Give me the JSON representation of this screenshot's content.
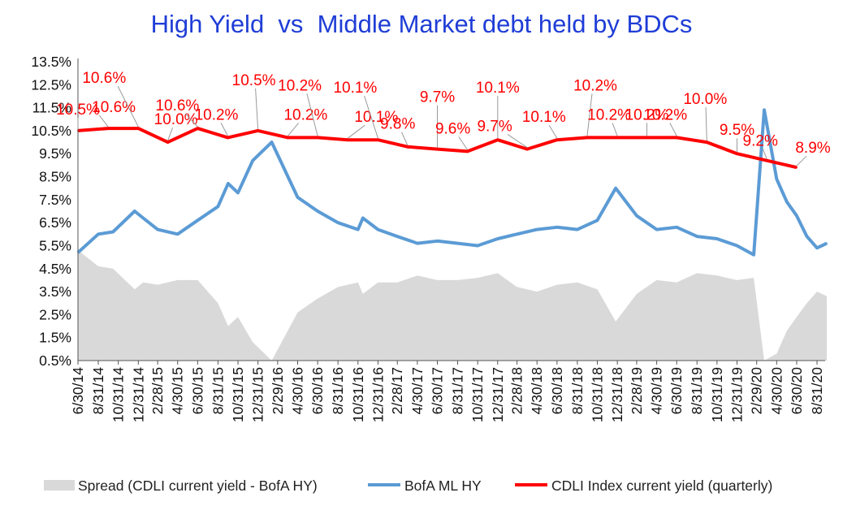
{
  "chart_data": {
    "type": "line",
    "title": "High Yield  vs  Middle Market debt held by BDCs",
    "y_ticks": [
      "0.5%",
      "1.5%",
      "2.5%",
      "3.5%",
      "4.5%",
      "5.5%",
      "6.5%",
      "7.5%",
      "8.5%",
      "9.5%",
      "10.5%",
      "11.5%",
      "12.5%",
      "13.5%"
    ],
    "ylim": [
      0.5,
      13.5
    ],
    "x_ticks": [
      "6/30/14",
      "8/31/14",
      "10/31/14",
      "12/31/14",
      "2/28/15",
      "4/30/15",
      "6/30/15",
      "8/31/15",
      "10/31/15",
      "12/31/15",
      "2/29/16",
      "4/30/16",
      "6/30/16",
      "8/31/16",
      "10/31/16",
      "12/31/16",
      "2/28/17",
      "4/30/17",
      "6/30/17",
      "8/31/17",
      "10/31/17",
      "12/31/17",
      "2/28/18",
      "4/30/18",
      "6/30/18",
      "8/31/18",
      "10/31/18",
      "12/31/18",
      "2/28/19",
      "4/30/19",
      "6/30/19",
      "8/31/19",
      "10/31/19",
      "12/31/19",
      "2/29/20",
      "4/30/20",
      "6/30/20",
      "8/31/20"
    ],
    "legend": [
      "Spread (CDLI current yield - BofA HY)",
      "BofA ML HY",
      "CDLI Index current yield (quarterly)"
    ],
    "colors": {
      "spread": "#d9d9d9",
      "hy": "#5b9bd5",
      "cdli": "#ff0000",
      "title": "#1f3dd6",
      "labels": "#ff0000"
    },
    "series": [
      {
        "name": "CDLI Index current yield (quarterly)",
        "x": [
          "6/30/14",
          "9/30/14",
          "12/31/14",
          "3/31/15",
          "6/30/15",
          "9/30/15",
          "12/31/15",
          "3/31/16",
          "6/30/16",
          "9/30/16",
          "12/31/16",
          "3/31/17",
          "6/30/17",
          "9/30/17",
          "12/31/17",
          "3/31/18",
          "6/30/18",
          "9/30/18",
          "12/31/18",
          "3/31/19",
          "6/30/19",
          "9/30/19",
          "12/31/19",
          "3/31/20",
          "6/30/20"
        ],
        "values": [
          10.5,
          10.6,
          10.6,
          10.0,
          10.6,
          10.2,
          10.5,
          10.2,
          10.2,
          10.1,
          10.1,
          9.8,
          9.7,
          9.6,
          10.1,
          9.7,
          10.1,
          10.2,
          10.2,
          10.2,
          10.2,
          10.0,
          9.5,
          9.2,
          8.9
        ],
        "labels": [
          "10.5%",
          "10.6%",
          "10.6%",
          "10.0%",
          "10.6%",
          "10.2%",
          "10.5%",
          "10.2%",
          "10.2%",
          "10.1%",
          "10.1%",
          "9.8%",
          "9.7%",
          "9.6%",
          "10.1%",
          "9.7%",
          "10.1%",
          "10.2%",
          "10.2%",
          "10.2%",
          "10.2%",
          "10.0%",
          "9.5%",
          "9.2%",
          "8.9%"
        ]
      },
      {
        "name": "BofA ML HY",
        "x": [
          "6/30/14",
          "8/31/14",
          "10/15/14",
          "12/20/14",
          "1/15/15",
          "2/28/15",
          "4/30/15",
          "6/30/15",
          "8/31/15",
          "10/1/15",
          "10/31/15",
          "12/15/15",
          "2/11/16",
          "4/30/16",
          "6/30/16",
          "8/31/16",
          "10/31/16",
          "11/15/16",
          "12/31/16",
          "2/28/17",
          "4/30/17",
          "6/30/17",
          "8/31/17",
          "10/31/17",
          "12/31/17",
          "2/28/18",
          "4/30/18",
          "6/30/18",
          "8/31/18",
          "10/31/18",
          "12/26/18",
          "2/28/19",
          "4/30/19",
          "6/30/19",
          "8/31/19",
          "10/31/19",
          "12/31/19",
          "2/20/20",
          "3/23/20",
          "4/30/20",
          "5/31/20",
          "6/30/20",
          "7/31/20",
          "8/31/20",
          "9/30/20"
        ],
        "values": [
          5.2,
          6.0,
          6.1,
          7.0,
          6.7,
          6.2,
          6.0,
          6.6,
          7.2,
          8.2,
          7.8,
          9.2,
          10.0,
          7.6,
          7.0,
          6.5,
          6.2,
          6.7,
          6.2,
          5.9,
          5.6,
          5.7,
          5.6,
          5.5,
          5.8,
          6.0,
          6.2,
          6.3,
          6.2,
          6.6,
          8.0,
          6.8,
          6.2,
          6.3,
          5.9,
          5.8,
          5.5,
          5.1,
          11.4,
          8.4,
          7.4,
          6.8,
          5.9,
          5.4,
          5.6
        ]
      },
      {
        "name": "Spread (CDLI current yield - BofA HY)",
        "x": [
          "6/30/14",
          "8/31/14",
          "10/15/14",
          "12/20/14",
          "1/15/15",
          "2/28/15",
          "4/30/15",
          "6/30/15",
          "8/31/15",
          "10/1/15",
          "10/31/15",
          "12/15/15",
          "2/11/16",
          "4/30/16",
          "6/30/16",
          "8/31/16",
          "10/31/16",
          "11/15/16",
          "12/31/16",
          "2/28/17",
          "4/30/17",
          "6/30/17",
          "8/31/17",
          "10/31/17",
          "12/31/17",
          "2/28/18",
          "4/30/18",
          "6/30/18",
          "8/31/18",
          "10/31/18",
          "12/26/18",
          "2/28/19",
          "4/30/19",
          "6/30/19",
          "8/31/19",
          "10/31/19",
          "12/31/19",
          "2/20/20",
          "3/23/20",
          "4/30/20",
          "5/31/20",
          "6/30/20",
          "7/31/20",
          "8/31/20",
          "9/30/20"
        ],
        "values": [
          5.3,
          4.6,
          4.5,
          3.6,
          3.9,
          3.8,
          4.0,
          4.0,
          3.0,
          2.0,
          2.4,
          1.3,
          0.5,
          2.6,
          3.2,
          3.7,
          3.9,
          3.4,
          3.9,
          3.9,
          4.2,
          4.0,
          4.0,
          4.1,
          4.3,
          3.7,
          3.5,
          3.8,
          3.9,
          3.6,
          2.2,
          3.4,
          4.0,
          3.9,
          4.3,
          4.2,
          4.0,
          4.1,
          0.5,
          0.8,
          1.8,
          2.4,
          3.0,
          3.5,
          3.3
        ]
      }
    ]
  }
}
